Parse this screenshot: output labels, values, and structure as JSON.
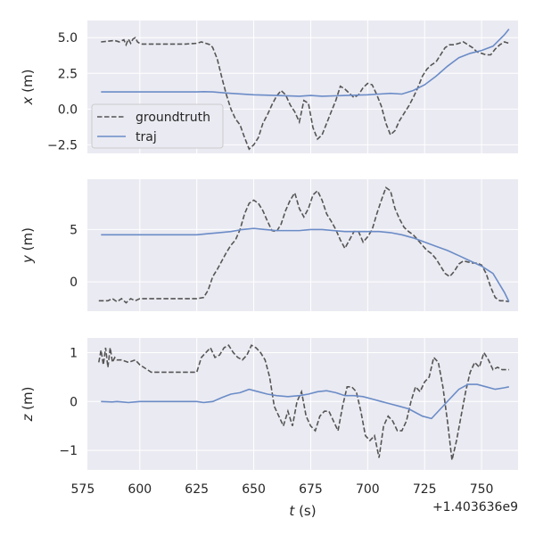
{
  "chart_data": [
    {
      "type": "line",
      "ylabel_var": "x",
      "ylabel_unit": " (m)",
      "xlim": [
        577,
        766
      ],
      "ylim": [
        -3.1,
        6.2
      ],
      "yticks": [
        -2.5,
        0.0,
        2.5,
        5.0
      ],
      "ytick_labels": [
        "−2.5",
        "0.0",
        "2.5",
        "5.0"
      ],
      "legend": {
        "position": "lower-left",
        "entries": [
          "groundtruth",
          "traj"
        ]
      },
      "series": [
        {
          "name": "groundtruth",
          "style": "dashed",
          "color": "#555555",
          "x": [
            583,
            586,
            589,
            591,
            593,
            594,
            595,
            596,
            597,
            598,
            599,
            600,
            601,
            605,
            610,
            615,
            620,
            625,
            627,
            629,
            631,
            632,
            634,
            636,
            638,
            640,
            642,
            644,
            646,
            648,
            650,
            652,
            654,
            656,
            658,
            660,
            662,
            664,
            666,
            668,
            670,
            672,
            674,
            676,
            678,
            680,
            682,
            684,
            686,
            688,
            690,
            692,
            694,
            696,
            698,
            700,
            702,
            704,
            706,
            708,
            710,
            712,
            714,
            716,
            718,
            720,
            722,
            724,
            726,
            728,
            730,
            732,
            734,
            736,
            738,
            740,
            742,
            744,
            746,
            748,
            750,
            752,
            754,
            756,
            758,
            760,
            762
          ],
          "y": [
            4.7,
            4.75,
            4.8,
            4.7,
            4.85,
            4.5,
            4.9,
            4.6,
            4.9,
            5.0,
            4.7,
            4.6,
            4.55,
            4.55,
            4.55,
            4.55,
            4.55,
            4.6,
            4.7,
            4.6,
            4.5,
            4.3,
            3.5,
            2.2,
            1.0,
            0.0,
            -0.7,
            -1.1,
            -2.0,
            -2.8,
            -2.5,
            -2.0,
            -1.0,
            -0.4,
            0.3,
            0.9,
            1.3,
            1.0,
            0.3,
            -0.2,
            -0.9,
            0.6,
            0.4,
            -1.3,
            -2.1,
            -1.8,
            -1.0,
            -0.2,
            0.6,
            1.6,
            1.4,
            1.1,
            0.8,
            1.0,
            1.5,
            1.8,
            1.7,
            1.0,
            0.2,
            -1.0,
            -1.8,
            -1.5,
            -0.8,
            -0.3,
            0.2,
            0.8,
            1.5,
            2.3,
            2.8,
            3.1,
            3.3,
            3.8,
            4.3,
            4.5,
            4.5,
            4.6,
            4.7,
            4.5,
            4.3,
            4.0,
            3.9,
            3.8,
            3.8,
            4.2,
            4.5,
            4.7,
            4.6
          ]
        },
        {
          "name": "traj",
          "style": "solid",
          "color": "#6b8cc7",
          "x": [
            583,
            590,
            600,
            610,
            620,
            625,
            628,
            632,
            640,
            650,
            660,
            670,
            675,
            680,
            690,
            700,
            705,
            710,
            715,
            720,
            725,
            730,
            735,
            740,
            745,
            750,
            755,
            760,
            762
          ],
          "y": [
            1.2,
            1.2,
            1.2,
            1.2,
            1.2,
            1.2,
            1.22,
            1.2,
            1.1,
            1.0,
            0.95,
            0.9,
            0.95,
            0.9,
            0.95,
            1.0,
            1.05,
            1.1,
            1.05,
            1.3,
            1.7,
            2.3,
            3.0,
            3.6,
            3.9,
            4.1,
            4.4,
            5.2,
            5.6
          ]
        }
      ]
    },
    {
      "type": "line",
      "ylabel_var": "y",
      "ylabel_unit": " (m)",
      "xlim": [
        577,
        766
      ],
      "ylim": [
        -2.8,
        9.8
      ],
      "yticks": [
        0,
        5
      ],
      "ytick_labels": [
        "0",
        "5"
      ],
      "series": [
        {
          "name": "groundtruth",
          "style": "dashed",
          "color": "#555555",
          "x": [
            582,
            586,
            588,
            590,
            592,
            594,
            596,
            598,
            600,
            605,
            610,
            615,
            620,
            625,
            628,
            630,
            632,
            634,
            636,
            638,
            640,
            642,
            644,
            646,
            648,
            650,
            652,
            654,
            656,
            658,
            660,
            662,
            664,
            666,
            668,
            670,
            671,
            672,
            674,
            676,
            678,
            680,
            682,
            684,
            686,
            688,
            690,
            692,
            694,
            696,
            698,
            700,
            702,
            704,
            706,
            708,
            710,
            712,
            714,
            716,
            718,
            720,
            722,
            724,
            726,
            728,
            730,
            732,
            734,
            736,
            738,
            740,
            742,
            744,
            746,
            748,
            750,
            752,
            754,
            756,
            758,
            760,
            762
          ],
          "y": [
            -1.8,
            -1.8,
            -1.6,
            -1.9,
            -1.6,
            -2.0,
            -1.6,
            -1.8,
            -1.6,
            -1.6,
            -1.6,
            -1.6,
            -1.6,
            -1.6,
            -1.5,
            -0.8,
            0.5,
            1.2,
            2.0,
            2.8,
            3.5,
            4.0,
            5.0,
            6.5,
            7.5,
            7.8,
            7.5,
            6.8,
            5.8,
            4.9,
            4.8,
            5.5,
            6.8,
            7.8,
            8.5,
            7.0,
            6.6,
            6.2,
            7.0,
            8.3,
            8.7,
            7.8,
            6.5,
            5.8,
            5.0,
            4.0,
            3.2,
            4.0,
            4.8,
            4.8,
            3.8,
            4.3,
            5.0,
            6.5,
            7.8,
            9.0,
            8.7,
            7.0,
            6.0,
            5.2,
            4.8,
            4.5,
            4.0,
            3.5,
            3.0,
            2.7,
            2.2,
            1.5,
            0.8,
            0.5,
            1.0,
            1.7,
            2.0,
            1.9,
            1.8,
            1.8,
            1.6,
            0.8,
            -0.5,
            -1.5,
            -1.8,
            -1.8,
            -1.9
          ]
        },
        {
          "name": "traj",
          "style": "solid",
          "color": "#6b8cc7",
          "x": [
            583,
            590,
            600,
            610,
            620,
            625,
            630,
            635,
            640,
            645,
            650,
            655,
            660,
            665,
            670,
            675,
            680,
            685,
            690,
            695,
            700,
            705,
            710,
            715,
            720,
            725,
            730,
            735,
            740,
            745,
            750,
            755,
            760,
            762
          ],
          "y": [
            4.5,
            4.5,
            4.5,
            4.5,
            4.5,
            4.5,
            4.6,
            4.7,
            4.8,
            5.0,
            5.1,
            5.0,
            4.9,
            4.9,
            4.9,
            5.0,
            5.0,
            4.9,
            4.8,
            4.8,
            4.8,
            4.8,
            4.7,
            4.5,
            4.2,
            3.8,
            3.4,
            3.0,
            2.5,
            2.0,
            1.5,
            0.8,
            -1.0,
            -1.9
          ]
        }
      ]
    },
    {
      "type": "line",
      "ylabel_var": "z",
      "ylabel_unit": " (m)",
      "xlim": [
        577,
        766
      ],
      "ylim": [
        -1.4,
        1.3
      ],
      "yticks": [
        -1,
        0,
        1
      ],
      "ytick_labels": [
        "−1",
        "0",
        "1"
      ],
      "xticks": [
        575,
        600,
        625,
        650,
        675,
        700,
        725,
        750
      ],
      "xtick_labels": [
        "575",
        "600",
        "625",
        "650",
        "675",
        "700",
        "725",
        "750"
      ],
      "xlabel_var": "t",
      "xlabel_unit": " (s)",
      "x_offset_label": "+1.403636e9",
      "series": [
        {
          "name": "groundtruth",
          "style": "dashed",
          "color": "#555555",
          "x": [
            582,
            583,
            584,
            585,
            586,
            587,
            588,
            589,
            590,
            592,
            595,
            598,
            600,
            605,
            610,
            615,
            620,
            625,
            627,
            629,
            631,
            633,
            635,
            637,
            639,
            641,
            643,
            645,
            647,
            649,
            651,
            653,
            655,
            657,
            659,
            661,
            663,
            665,
            667,
            669,
            671,
            673,
            675,
            677,
            679,
            681,
            683,
            685,
            687,
            689,
            691,
            693,
            695,
            697,
            699,
            701,
            703,
            705,
            707,
            709,
            711,
            713,
            715,
            717,
            719,
            721,
            723,
            725,
            727,
            729,
            731,
            733,
            735,
            737,
            739,
            741,
            743,
            745,
            747,
            749,
            751,
            753,
            755,
            757,
            759,
            761,
            762
          ],
          "y": [
            0.8,
            1.05,
            0.75,
            1.1,
            0.7,
            1.1,
            0.8,
            0.9,
            0.85,
            0.85,
            0.8,
            0.85,
            0.75,
            0.6,
            0.6,
            0.6,
            0.6,
            0.6,
            0.9,
            1.0,
            1.1,
            0.9,
            0.95,
            1.1,
            1.15,
            1.0,
            0.9,
            0.85,
            0.95,
            1.15,
            1.1,
            1.0,
            0.85,
            0.5,
            -0.1,
            -0.3,
            -0.5,
            -0.2,
            -0.5,
            0.0,
            0.2,
            -0.3,
            -0.5,
            -0.6,
            -0.3,
            -0.2,
            -0.2,
            -0.4,
            -0.6,
            -0.1,
            0.3,
            0.3,
            0.2,
            -0.2,
            -0.7,
            -0.8,
            -0.7,
            -1.15,
            -0.5,
            -0.3,
            -0.4,
            -0.6,
            -0.6,
            -0.4,
            0.0,
            0.3,
            0.2,
            0.4,
            0.5,
            0.9,
            0.8,
            0.3,
            -0.4,
            -1.2,
            -0.8,
            -0.3,
            0.2,
            0.6,
            0.8,
            0.7,
            1.0,
            0.85,
            0.65,
            0.7,
            0.65,
            0.65,
            0.65
          ]
        },
        {
          "name": "traj",
          "style": "solid",
          "color": "#6b8cc7",
          "x": [
            583,
            588,
            590,
            595,
            600,
            610,
            620,
            625,
            628,
            632,
            636,
            640,
            644,
            648,
            652,
            656,
            660,
            665,
            670,
            674,
            678,
            682,
            686,
            690,
            694,
            698,
            702,
            706,
            710,
            714,
            718,
            722,
            724,
            728,
            732,
            736,
            740,
            744,
            748,
            752,
            756,
            760,
            762
          ],
          "y": [
            0.0,
            -0.01,
            0.0,
            -0.02,
            0.0,
            0.0,
            0.0,
            0.0,
            -0.02,
            0.0,
            0.08,
            0.15,
            0.18,
            0.25,
            0.2,
            0.15,
            0.12,
            0.1,
            0.12,
            0.15,
            0.2,
            0.22,
            0.18,
            0.12,
            0.12,
            0.1,
            0.05,
            0.0,
            -0.05,
            -0.1,
            -0.15,
            -0.25,
            -0.3,
            -0.35,
            -0.15,
            0.05,
            0.25,
            0.35,
            0.35,
            0.3,
            0.25,
            0.28,
            0.3
          ]
        }
      ]
    }
  ]
}
